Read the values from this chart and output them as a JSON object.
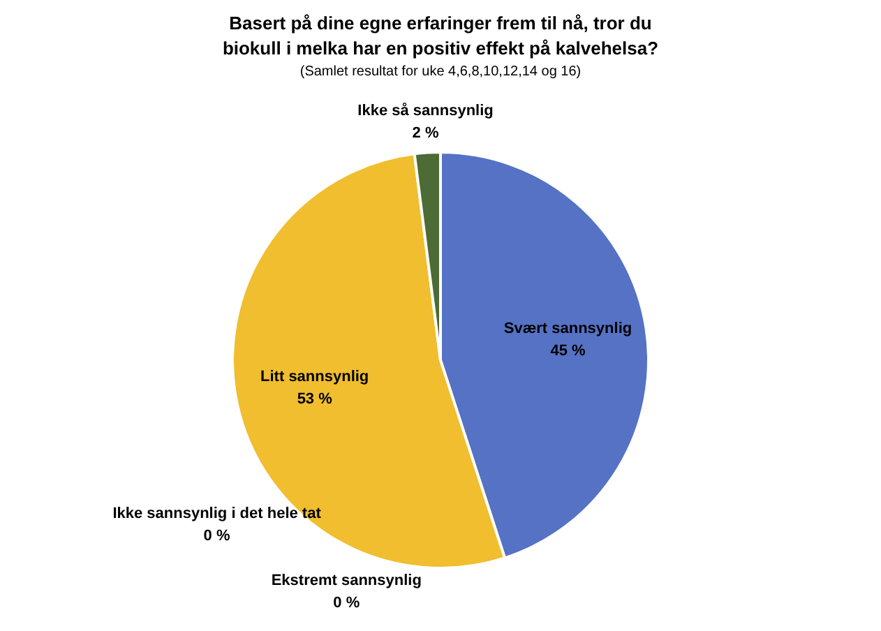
{
  "chart_data": {
    "type": "pie",
    "title": "Basert på dine egne erfaringer frem til nå, tror du biokull i melka har en positiv effekt på kalvehelsa?",
    "subtitle": "(Samlet resultat for uke 4,6,8,10,12,14 og 16)",
    "categories": [
      "Svært sannsynlig",
      "Ekstremt sannsynlig",
      "Ikke sannsynlig i det hele tat",
      "Litt sannsynlig",
      "Ikke så sannsynlig"
    ],
    "values": [
      45,
      0,
      0,
      53,
      2
    ],
    "colors": [
      "#5572c4",
      "#ed7d31",
      "#a5a5a5",
      "#f0be2e",
      "#4d6b35"
    ],
    "value_labels": [
      "45 %",
      "0 %",
      "0 %",
      "53 %",
      "2 %"
    ],
    "legend": false
  }
}
